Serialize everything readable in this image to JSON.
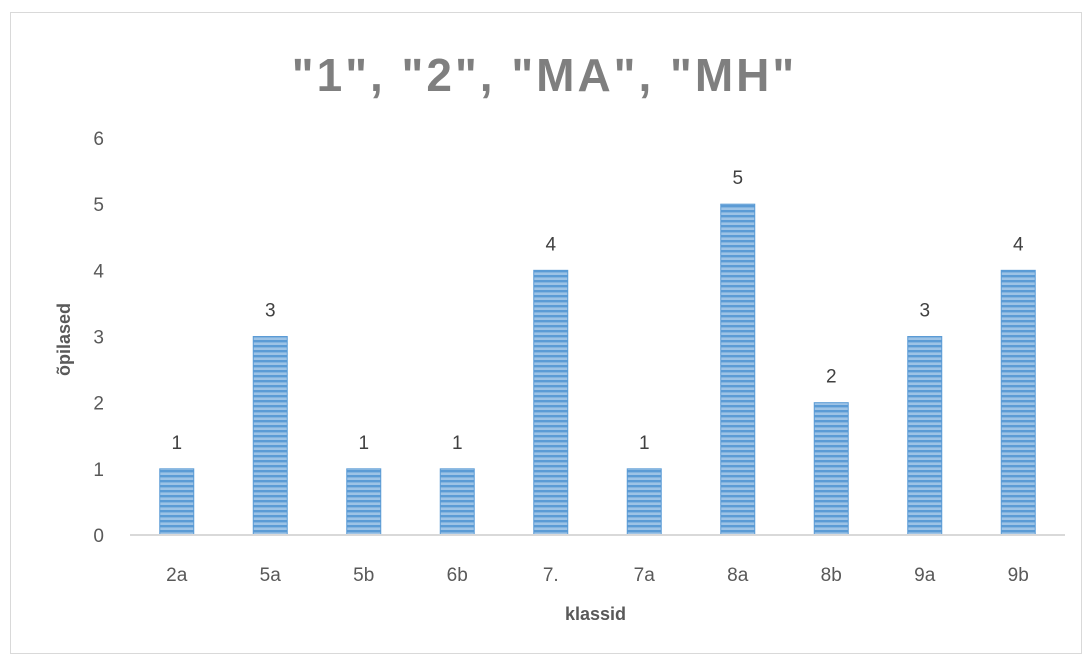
{
  "chart_data": {
    "type": "bar",
    "title": "\"1\", \"2\", \"MA\", \"MH\"",
    "xlabel": "klassid",
    "ylabel": "õpilased",
    "categories": [
      "2a",
      "5a",
      "5b",
      "6b",
      "7.",
      "7a",
      "8a",
      "8b",
      "9a",
      "9b"
    ],
    "values": [
      1,
      3,
      1,
      1,
      4,
      1,
      5,
      2,
      3,
      4
    ],
    "ylim": [
      0,
      6
    ],
    "yticks": [
      "0",
      "1",
      "2",
      "3",
      "4",
      "5",
      "6"
    ],
    "grid": false,
    "legend": "none",
    "bar_color": "#5b9bd5",
    "bar_stripe_color": "#9dc3e6"
  }
}
